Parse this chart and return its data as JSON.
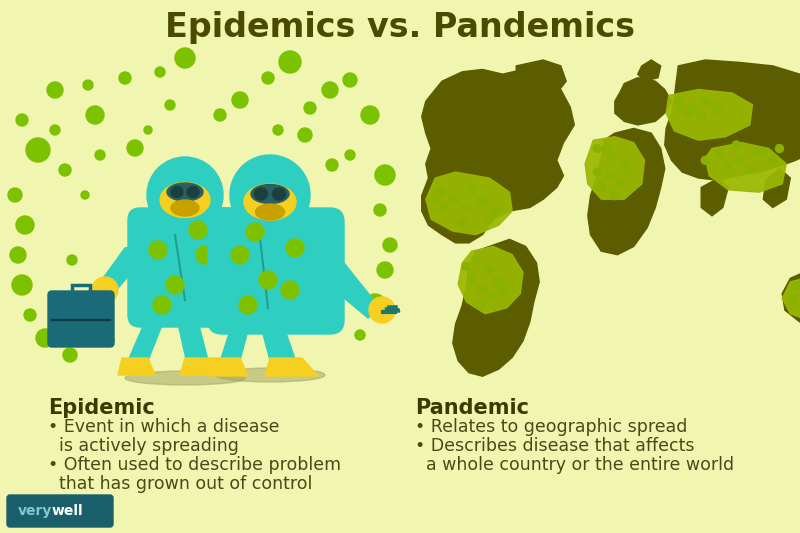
{
  "title": "Epidemics vs. Pandemics",
  "background_color": "#f0f5b0",
  "title_color": "#4a4a00",
  "title_fontsize": 24,
  "title_fontweight": "bold",
  "left_heading": "Epidemic",
  "left_bullets_line1": "• Event in which a disease",
  "left_bullets_line2": "  is actively spreading",
  "left_bullets_line3": "• Often used to describe problem",
  "left_bullets_line4": "  that has grown out of control",
  "right_heading": "Pandemic",
  "right_bullets_line1": "• Relates to geographic spread",
  "right_bullets_line2": "• Describes disease that affects",
  "right_bullets_line3": "  a whole country or the entire world",
  "heading_color": "#3a3a00",
  "body_color": "#4a4a18",
  "heading_fontsize": 15,
  "body_fontsize": 12.5,
  "verywell_bg": "#1a5f6a",
  "verywell_text_color": "#ffffff",
  "verywell_highlight": "#7ecbce",
  "teal_color": "#2ecfc0",
  "teal_dark": "#1a7a72",
  "yellow_color": "#f5d020",
  "olive_dark": "#5c5c00",
  "olive_medium": "#7a8c00",
  "olive_light": "#9ab800",
  "dot_color_left": "#7dc200",
  "dot_color_right": "#8ab000",
  "briefcase_color": "#1a6a78",
  "backpack_color": "#0d4a55",
  "goggles_color": "#2a6060",
  "goggles_lens": "#1a4040"
}
